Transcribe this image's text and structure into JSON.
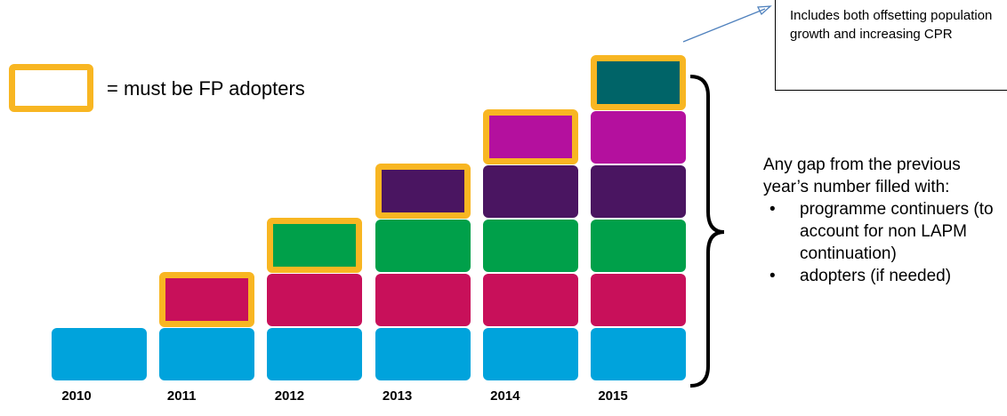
{
  "legend": {
    "label": "= must be FP adopters"
  },
  "callout": {
    "text": "Includes both offsetting population growth and increasing CPR"
  },
  "explanation": {
    "lead": "Any gap from the previous year’s number filled with:",
    "bullets": [
      "programme continuers (to account for non LAPM continuation)",
      "adopters (if needed)"
    ]
  },
  "colors": {
    "adopter_outline": "#f8b622",
    "segments": [
      "#00a3dc",
      "#c8105a",
      "#00a04a",
      "#4a1561",
      "#b4109e",
      "#006468"
    ]
  },
  "chart_data": {
    "type": "bar",
    "stacked": true,
    "categories": [
      "2010",
      "2011",
      "2012",
      "2013",
      "2014",
      "2015"
    ],
    "segments_per_year": [
      1,
      2,
      3,
      4,
      5,
      6
    ],
    "top_segment_outlined": [
      false,
      true,
      true,
      true,
      true,
      true
    ]
  }
}
